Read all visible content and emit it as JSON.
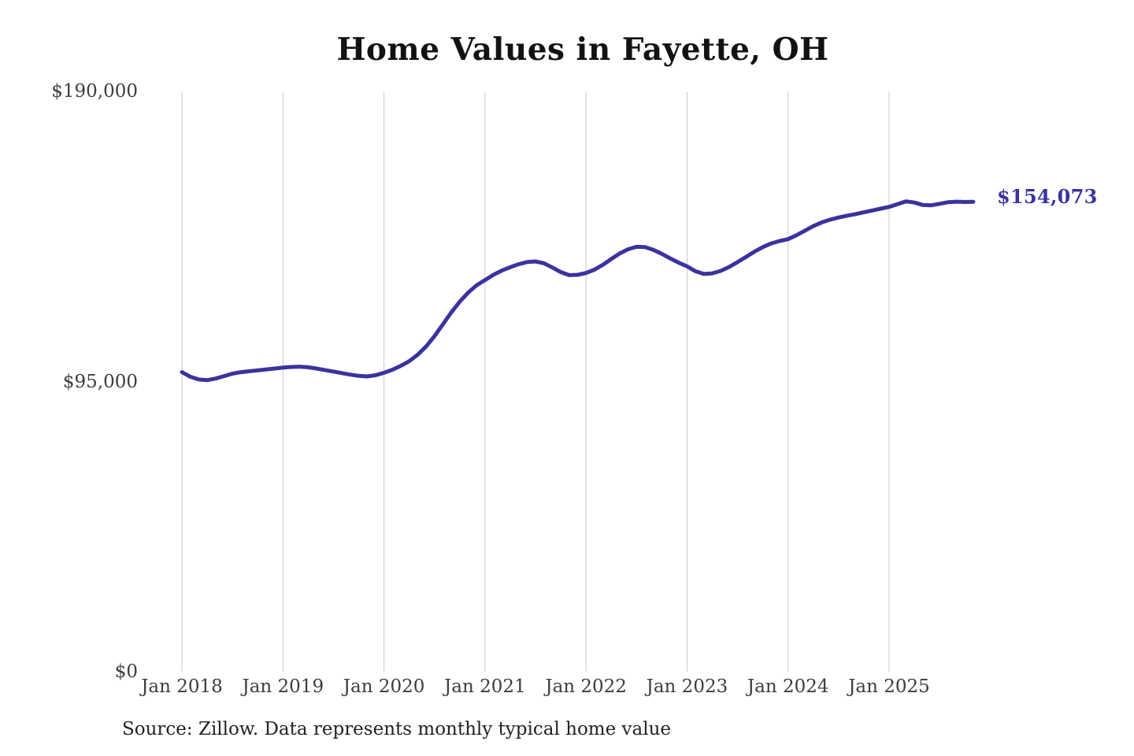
{
  "chart_data": {
    "type": "line",
    "title": "Home Values in Fayette, OH",
    "series_name": "Monthly typical home value",
    "unit": "USD",
    "ylim": [
      0,
      190000
    ],
    "y_ticks": [
      {
        "label": "$190,000",
        "value": 190000
      },
      {
        "label": "$95,000",
        "value": 95000
      },
      {
        "label": "$0",
        "value": 0
      }
    ],
    "x_tick_labels": [
      "Jan 2018",
      "Jan 2019",
      "Jan 2020",
      "Jan 2021",
      "Jan 2022",
      "Jan 2023",
      "Jan 2024",
      "Jan 2025"
    ],
    "x_first_month": "2018-01",
    "x_last_month": "2025-11",
    "grid": "vertical-only",
    "legend": "none",
    "line_color": "#3a339d",
    "grid_color": "#c9c9c9",
    "end_label": "$154,073",
    "end_value": 154073,
    "monthly_values": [
      98200,
      96700,
      95800,
      95600,
      96100,
      96900,
      97700,
      98200,
      98500,
      98800,
      99100,
      99400,
      99700,
      99900,
      100000,
      99800,
      99400,
      98900,
      98400,
      97900,
      97400,
      97000,
      96800,
      97200,
      98000,
      99000,
      100300,
      101800,
      103900,
      106600,
      110000,
      113900,
      117800,
      121300,
      124300,
      126700,
      128400,
      130100,
      131500,
      132600,
      133600,
      134300,
      134500,
      133900,
      132500,
      131000,
      130000,
      130100,
      130700,
      131800,
      133400,
      135300,
      137100,
      138500,
      139300,
      139200,
      138300,
      137000,
      135500,
      134100,
      132900,
      131300,
      130400,
      130600,
      131400,
      132700,
      134300,
      136000,
      137700,
      139200,
      140400,
      141200,
      141800,
      143100,
      144600,
      146100,
      147300,
      148200,
      148900,
      149500,
      150000,
      150600,
      151200,
      151800,
      152400,
      153300,
      154200,
      153800,
      153000,
      152900,
      153400,
      153900,
      154100,
      154000,
      154073
    ]
  },
  "footer": {
    "source_note": "Source: Zillow. Data represents monthly typical home value"
  }
}
